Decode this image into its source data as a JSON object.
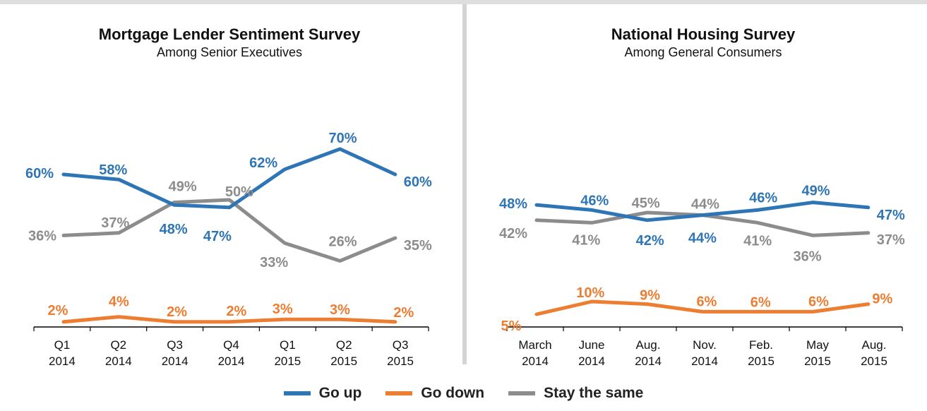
{
  "colors": {
    "up": "#2e75b6",
    "down": "#ed7d31",
    "same": "#8c8c8c"
  },
  "legend": [
    {
      "key": "up",
      "label": "Go up"
    },
    {
      "key": "down",
      "label": "Go down"
    },
    {
      "key": "same",
      "label": "Stay the same"
    }
  ],
  "chart_data": [
    {
      "type": "line",
      "title": "Mortgage Lender Sentiment Survey",
      "subtitle": "Among Senior Executives",
      "categories": [
        [
          "Q1",
          "2014"
        ],
        [
          "Q2",
          "2014"
        ],
        [
          "Q3",
          "2014"
        ],
        [
          "Q4",
          "2014"
        ],
        [
          "Q1",
          "2015"
        ],
        [
          "Q2",
          "2015"
        ],
        [
          "Q3",
          "2015"
        ]
      ],
      "ylim": [
        0,
        80
      ],
      "grid": false,
      "series": [
        {
          "key": "up",
          "name": "Go up",
          "values": [
            60,
            58,
            48,
            47,
            62,
            70,
            60
          ]
        },
        {
          "key": "down",
          "name": "Go down",
          "values": [
            2,
            4,
            2,
            2,
            3,
            3,
            2
          ]
        },
        {
          "key": "same",
          "name": "Stay the same",
          "values": [
            36,
            37,
            49,
            50,
            33,
            26,
            35
          ]
        }
      ]
    },
    {
      "type": "line",
      "title": "National Housing Survey",
      "subtitle": "Among General Consumers",
      "categories": [
        [
          "March",
          "2014"
        ],
        [
          "June",
          "2014"
        ],
        [
          "Aug.",
          "2014"
        ],
        [
          "Nov.",
          "2014"
        ],
        [
          "Feb.",
          "2015"
        ],
        [
          "May",
          "2015"
        ],
        [
          "Aug.",
          "2015"
        ]
      ],
      "ylim": [
        0,
        80
      ],
      "grid": false,
      "series": [
        {
          "key": "up",
          "name": "Go up",
          "values": [
            48,
            46,
            42,
            44,
            46,
            49,
            47
          ]
        },
        {
          "key": "down",
          "name": "Go down",
          "values": [
            5,
            10,
            9,
            6,
            6,
            6,
            9
          ]
        },
        {
          "key": "same",
          "name": "Stay the same",
          "values": [
            42,
            41,
            45,
            44,
            41,
            36,
            37
          ]
        }
      ]
    }
  ]
}
